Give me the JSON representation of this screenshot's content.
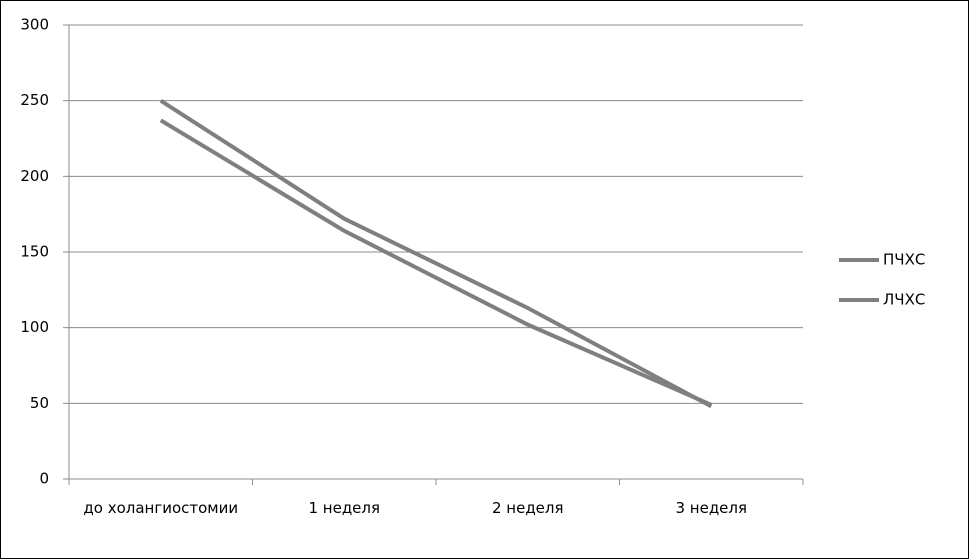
{
  "chart_data": {
    "type": "line",
    "categories": [
      "до холангиостомии",
      "1 неделя",
      "2 неделя",
      "3 неделя"
    ],
    "series": [
      {
        "name": "ПЧХС",
        "color": "#7f7f7f",
        "values": [
          250,
          172,
          113,
          48
        ]
      },
      {
        "name": "ЛЧХС",
        "color": "#7f7f7f",
        "values": [
          237,
          164,
          102,
          49
        ]
      }
    ],
    "ylim": [
      0,
      300
    ],
    "yticks": [
      0,
      50,
      100,
      150,
      200,
      250,
      300
    ],
    "grid": true,
    "legend": "right"
  }
}
